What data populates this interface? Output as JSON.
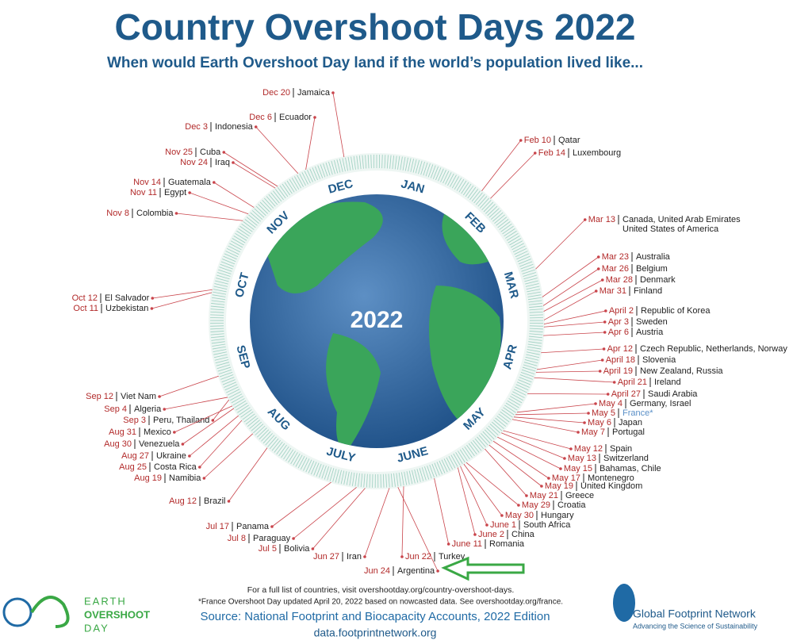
{
  "header": {
    "title": "Country Overshoot Days 2022",
    "subtitle": "When would Earth Overshoot Day land if the world’s population lived like..."
  },
  "center": "2022",
  "months": [
    "JAN",
    "FEB",
    "MAR",
    "APR",
    "MAY",
    "JUNE",
    "JULY",
    "AUG",
    "SEP",
    "OCT",
    "NOV",
    "DEC"
  ],
  "entries": [
    {
      "date": "Dec 20",
      "country": "Jamaica"
    },
    {
      "date": "Dec 6",
      "country": "Ecuador"
    },
    {
      "date": "Dec 3",
      "country": "Indonesia"
    },
    {
      "date": "Nov 25",
      "country": "Cuba"
    },
    {
      "date": "Nov 24",
      "country": "Iraq"
    },
    {
      "date": "Nov 14",
      "country": "Guatemala"
    },
    {
      "date": "Nov 11",
      "country": "Egypt"
    },
    {
      "date": "Nov 8",
      "country": "Colombia"
    },
    {
      "date": "Oct 12",
      "country": "El Salvador"
    },
    {
      "date": "Oct 11",
      "country": "Uzbekistan"
    },
    {
      "date": "Sep 12",
      "country": "Viet Nam"
    },
    {
      "date": "Sep 4",
      "country": "Algeria"
    },
    {
      "date": "Sep 3",
      "country": "Peru, Thailand"
    },
    {
      "date": "Aug 31",
      "country": "Mexico"
    },
    {
      "date": "Aug 30",
      "country": "Venezuela"
    },
    {
      "date": "Aug 27",
      "country": "Ukraine"
    },
    {
      "date": "Aug 25",
      "country": "Costa Rica"
    },
    {
      "date": "Aug 19",
      "country": "Namibia"
    },
    {
      "date": "Aug 12",
      "country": "Brazil"
    },
    {
      "date": "Jul 17",
      "country": "Panama"
    },
    {
      "date": "Jul 8",
      "country": "Paraguay"
    },
    {
      "date": "Jul 5",
      "country": "Bolivia"
    },
    {
      "date": "Jun 27",
      "country": "Iran"
    },
    {
      "date": "Jun 24",
      "country": "Argentina"
    },
    {
      "date": "Jun 22",
      "country": "Turkey"
    },
    {
      "date": "June 11",
      "country": "Romania"
    },
    {
      "date": "June 2",
      "country": "China"
    },
    {
      "date": "June 1",
      "country": "South Africa"
    },
    {
      "date": "May 30",
      "country": "Hungary"
    },
    {
      "date": "May 29",
      "country": "Croatia"
    },
    {
      "date": "May 21",
      "country": "Greece"
    },
    {
      "date": "May 19",
      "country": "United Kingdom"
    },
    {
      "date": "May 17",
      "country": "Montenegro"
    },
    {
      "date": "May 15",
      "country": "Bahamas, Chile"
    },
    {
      "date": "May 13",
      "country": "Switzerland"
    },
    {
      "date": "May 12",
      "country": "Spain"
    },
    {
      "date": "May 7",
      "country": "Portugal"
    },
    {
      "date": "May 6",
      "country": "Japan"
    },
    {
      "date": "May 5",
      "country": "France*"
    },
    {
      "date": "May 4",
      "country": "Germany, Israel"
    },
    {
      "date": "April 27",
      "country": "Saudi Arabia"
    },
    {
      "date": "April 21",
      "country": "Ireland"
    },
    {
      "date": "April 19",
      "country": "New Zealand, Russia"
    },
    {
      "date": "April 18",
      "country": "Slovenia"
    },
    {
      "date": "Apr 12",
      "country": "Czech Republic, Netherlands, Norway"
    },
    {
      "date": "Apr 6",
      "country": "Austria"
    },
    {
      "date": "Apr 3",
      "country": "Sweden"
    },
    {
      "date": "April 2",
      "country": "Republic of Korea"
    },
    {
      "date": "Mar 31",
      "country": "Finland"
    },
    {
      "date": "Mar 28",
      "country": "Denmark"
    },
    {
      "date": "Mar 26",
      "country": "Belgium"
    },
    {
      "date": "Mar 23",
      "country": "Australia"
    },
    {
      "date": "Mar 13",
      "country": "Canada, United Arab Emirates",
      "country_line2": "United States of America"
    },
    {
      "date": "Feb 14",
      "country": "Luxembourg"
    },
    {
      "date": "Feb 10",
      "country": "Qatar"
    }
  ],
  "footer": {
    "note": "For a full list of countries, visit overshootday.org/country-overshoot-days.",
    "france_note": "*France Overshoot Day updated April 20, 2022 based on nowcasted data. See overshootday.org/france.",
    "source": "Source: National Footprint and Biocapacity Accounts, 2022 Edition",
    "url": "data.footprintnetwork.org"
  },
  "logo_left": [
    "EARTH",
    "OVERSHOOT",
    "DAY"
  ],
  "logo_right": {
    "name": "Global Footprint Network",
    "tagline": "Advancing the Science of Sustainability"
  }
}
